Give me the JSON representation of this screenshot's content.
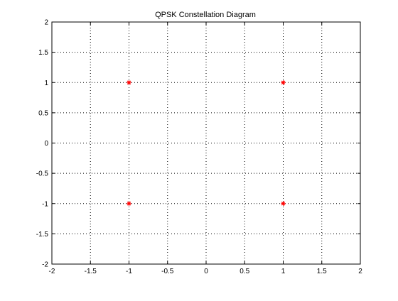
{
  "chart_data": {
    "type": "scatter",
    "title": "QPSK Constellation Diagram",
    "xlabel": "",
    "ylabel": "",
    "xlim": [
      -2,
      2
    ],
    "ylim": [
      -2,
      2
    ],
    "xticks": [
      -2,
      -1.5,
      -1,
      -0.5,
      0,
      0.5,
      1,
      1.5,
      2
    ],
    "yticks": [
      -2,
      -1.5,
      -1,
      -0.5,
      0,
      0.5,
      1,
      1.5,
      2
    ],
    "xtick_labels": [
      "-2",
      "-1.5",
      "-1",
      "-0.5",
      "0",
      "0.5",
      "1",
      "1.5",
      "2"
    ],
    "ytick_labels": [
      "-2",
      "-1.5",
      "-1",
      "-0.5",
      "0",
      "0.5",
      "1",
      "1.5",
      "2"
    ],
    "grid": true,
    "grid_style": "dotted",
    "marker": "asterisk",
    "series": [
      {
        "color": "#ff0000",
        "points": [
          {
            "x": -1,
            "y": 1
          },
          {
            "x": 1,
            "y": 1
          },
          {
            "x": -1,
            "y": -1
          },
          {
            "x": 1,
            "y": -1
          }
        ]
      }
    ]
  }
}
